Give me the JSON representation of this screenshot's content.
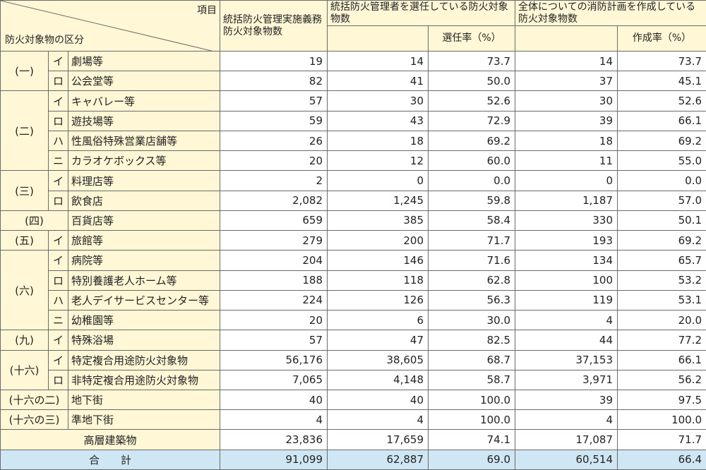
{
  "header": {
    "item_label": "項目",
    "category_label": "防火対象物の区分",
    "col1": "統括防火管理実施義務防火対象物数",
    "col2": "統括防火管理者を選任している防火対象物数",
    "col3": "選任率（%）",
    "col4": "全体についての消防計画を作成している防火対象物数",
    "col5": "作成率（%）"
  },
  "rows": [
    {
      "cat": "(一)",
      "sub": "イ",
      "name": "劇場等",
      "v1": "19",
      "v2": "14",
      "v3": "73.7",
      "v4": "14",
      "v5": "73.7"
    },
    {
      "sub": "ロ",
      "name": "公会堂等",
      "v1": "82",
      "v2": "41",
      "v3": "50.0",
      "v4": "37",
      "v5": "45.1"
    },
    {
      "cat": "(二)",
      "sub": "イ",
      "name": "キャバレー等",
      "v1": "57",
      "v2": "30",
      "v3": "52.6",
      "v4": "30",
      "v5": "52.6"
    },
    {
      "sub": "ロ",
      "name": "遊技場等",
      "v1": "59",
      "v2": "43",
      "v3": "72.9",
      "v4": "39",
      "v5": "66.1"
    },
    {
      "sub": "ハ",
      "name": "性風俗特殊営業店舗等",
      "v1": "26",
      "v2": "18",
      "v3": "69.2",
      "v4": "18",
      "v5": "69.2"
    },
    {
      "sub": "ニ",
      "name": "カラオケボックス等",
      "v1": "20",
      "v2": "12",
      "v3": "60.0",
      "v4": "11",
      "v5": "55.0"
    },
    {
      "cat": "(三)",
      "sub": "イ",
      "name": "料理店等",
      "v1": "2",
      "v2": "0",
      "v3": "0.0",
      "v4": "0",
      "v5": "0.0"
    },
    {
      "sub": "ロ",
      "name": "飲食店",
      "v1": "2,082",
      "v2": "1,245",
      "v3": "59.8",
      "v4": "1,187",
      "v5": "57.0"
    },
    {
      "cat": "(四)",
      "name": "百貨店等",
      "v1": "659",
      "v2": "385",
      "v3": "58.4",
      "v4": "330",
      "v5": "50.1"
    },
    {
      "cat": "(五)",
      "sub": "イ",
      "name": "旅館等",
      "v1": "279",
      "v2": "200",
      "v3": "71.7",
      "v4": "193",
      "v5": "69.2"
    },
    {
      "cat": "(六)",
      "sub": "イ",
      "name": "病院等",
      "v1": "204",
      "v2": "146",
      "v3": "71.6",
      "v4": "134",
      "v5": "65.7"
    },
    {
      "sub": "ロ",
      "name": "特別養護老人ホーム等",
      "v1": "188",
      "v2": "118",
      "v3": "62.8",
      "v4": "100",
      "v5": "53.2"
    },
    {
      "sub": "ハ",
      "name": "老人デイサービスセンター等",
      "v1": "224",
      "v2": "126",
      "v3": "56.3",
      "v4": "119",
      "v5": "53.1"
    },
    {
      "sub": "ニ",
      "name": "幼稚園等",
      "v1": "20",
      "v2": "6",
      "v3": "30.0",
      "v4": "4",
      "v5": "20.0"
    },
    {
      "cat": "(九)",
      "sub": "イ",
      "name": "特殊浴場",
      "v1": "57",
      "v2": "47",
      "v3": "82.5",
      "v4": "44",
      "v5": "77.2"
    },
    {
      "cat": "(十六)",
      "sub": "イ",
      "name": "特定複合用途防火対象物",
      "v1": "56,176",
      "v2": "38,605",
      "v3": "68.7",
      "v4": "37,153",
      "v5": "66.1"
    },
    {
      "sub": "ロ",
      "name": "非特定複合用途防火対象物",
      "v1": "7,065",
      "v2": "4,148",
      "v3": "58.7",
      "v4": "3,971",
      "v5": "56.2"
    },
    {
      "cat": "(十六の二)",
      "name": "地下街",
      "v1": "40",
      "v2": "40",
      "v3": "100.0",
      "v4": "39",
      "v5": "97.5"
    },
    {
      "cat": "(十六の三)",
      "name": "準地下街",
      "v1": "4",
      "v2": "4",
      "v3": "100.0",
      "v4": "4",
      "v5": "100.0"
    },
    {
      "name": "高層建築物",
      "v1": "23,836",
      "v2": "17,659",
      "v3": "74.1",
      "v4": "17,087",
      "v5": "71.7"
    },
    {
      "name": "合　　計",
      "v1": "91,099",
      "v2": "62,887",
      "v3": "69.0",
      "v4": "60,514",
      "v5": "66.4"
    }
  ]
}
